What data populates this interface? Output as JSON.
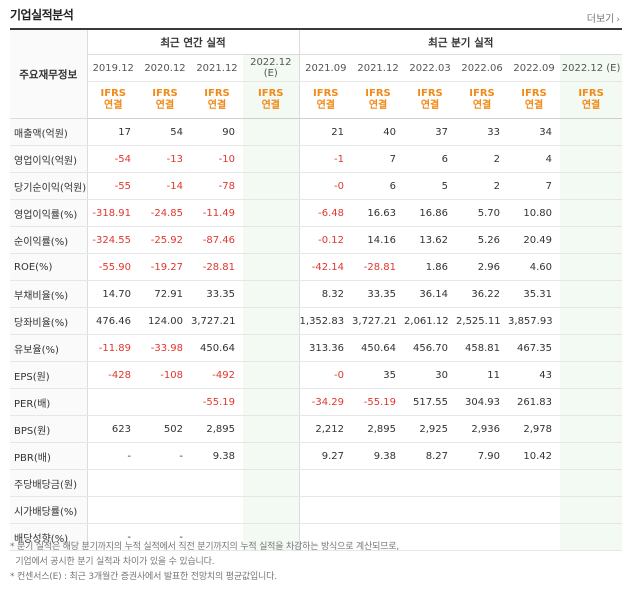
{
  "header": {
    "title": "기업실적분석",
    "more_label": "더보기"
  },
  "table": {
    "row_label_header": "주요재무정보",
    "annual_title": "최근 연간 실적",
    "quarter_title": "최근 분기 실적",
    "annual_periods": [
      "2019.12",
      "2020.12",
      "2021.12",
      "2022.12\n(E)"
    ],
    "quarter_periods": [
      "2021.09",
      "2021.12",
      "2022.03",
      "2022.06",
      "2022.09",
      "2022.12 (E)"
    ],
    "basis": "IFRS\n연결",
    "rows": [
      {
        "label": "매출액(억원)",
        "values": [
          "17",
          "54",
          "90",
          "",
          "21",
          "40",
          "37",
          "33",
          "34",
          ""
        ]
      },
      {
        "label": "영업이익(억원)",
        "values": [
          "-54",
          "-13",
          "-10",
          "",
          "-1",
          "7",
          "6",
          "2",
          "4",
          ""
        ]
      },
      {
        "label": "당기순이익(억원)",
        "values": [
          "-55",
          "-14",
          "-78",
          "",
          "-0",
          "6",
          "5",
          "2",
          "7",
          ""
        ]
      },
      {
        "label": "영업이익률(%)",
        "values": [
          "-318.91",
          "-24.85",
          "-11.49",
          "",
          "-6.48",
          "16.63",
          "16.86",
          "5.70",
          "10.80",
          ""
        ]
      },
      {
        "label": "순이익률(%)",
        "values": [
          "-324.55",
          "-25.92",
          "-87.46",
          "",
          "-0.12",
          "14.16",
          "13.62",
          "5.26",
          "20.49",
          ""
        ]
      },
      {
        "label": "ROE(%)",
        "values": [
          "-55.90",
          "-19.27",
          "-28.81",
          "",
          "-42.14",
          "-28.81",
          "1.86",
          "2.96",
          "4.60",
          ""
        ]
      },
      {
        "label": "부채비율(%)",
        "values": [
          "14.70",
          "72.91",
          "33.35",
          "",
          "8.32",
          "33.35",
          "36.14",
          "36.22",
          "35.31",
          ""
        ]
      },
      {
        "label": "당좌비율(%)",
        "values": [
          "476.46",
          "124.00",
          "3,727.21",
          "",
          "1,352.83",
          "3,727.21",
          "2,061.12",
          "2,525.11",
          "3,857.93",
          ""
        ]
      },
      {
        "label": "유보율(%)",
        "values": [
          "-11.89",
          "-33.98",
          "450.64",
          "",
          "313.36",
          "450.64",
          "456.70",
          "458.81",
          "467.35",
          ""
        ]
      },
      {
        "label": "EPS(원)",
        "values": [
          "-428",
          "-108",
          "-492",
          "",
          "-0",
          "35",
          "30",
          "11",
          "43",
          ""
        ]
      },
      {
        "label": "PER(배)",
        "values": [
          "",
          "",
          "-55.19",
          "",
          "-34.29",
          "-55.19",
          "517.55",
          "304.93",
          "261.83",
          ""
        ]
      },
      {
        "label": "BPS(원)",
        "values": [
          "623",
          "502",
          "2,895",
          "",
          "2,212",
          "2,895",
          "2,925",
          "2,936",
          "2,978",
          ""
        ]
      },
      {
        "label": "PBR(배)",
        "values": [
          "-",
          "-",
          "9.38",
          "",
          "9.27",
          "9.38",
          "8.27",
          "7.90",
          "10.42",
          ""
        ]
      },
      {
        "label": "주당배당금(원)",
        "values": [
          "",
          "",
          "",
          "",
          "",
          "",
          "",
          "",
          "",
          ""
        ]
      },
      {
        "label": "시가배당률(%)",
        "values": [
          "",
          "",
          "",
          "",
          "",
          "",
          "",
          "",
          "",
          ""
        ]
      },
      {
        "label": "배당성향(%)",
        "values": [
          "-",
          "-",
          "",
          "",
          "",
          "",
          "",
          "",
          "",
          ""
        ]
      }
    ]
  },
  "notes": [
    "* 분기 실적은 해당 분기까지의 누적 실적에서 직전 분기까지의 누적 실적을 차감하는 방식으로 계산되므로,",
    "  기업에서 공시한 분기 실적과 차이가 있을 수 있습니다.",
    "* 컨센서스(E) : 최근 3개월간 증권사에서 발표한 전망치의 평균값입니다."
  ]
}
